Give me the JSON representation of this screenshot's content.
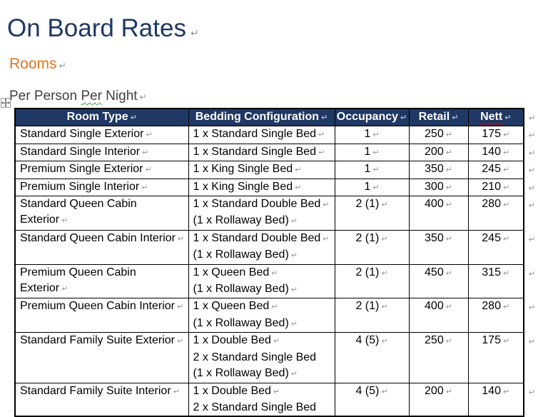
{
  "document": {
    "title": {
      "text": "On Board Rates"
    },
    "heading": {
      "text": "Rooms"
    },
    "subheading": {
      "segments": [
        {
          "text": "Per Person "
        },
        {
          "text": "Per",
          "squiggle": "green"
        },
        {
          "text": " Night"
        }
      ]
    },
    "paragraph_mark": "↵",
    "cell_mark": "↵"
  },
  "icons": {
    "table_move_handle": "move-cross"
  },
  "colors": {
    "title_navy": "#1F3864",
    "heading_orange": "#E8731C",
    "subheading_gray": "#3F3F3F",
    "table_header_bg": "#1F3864",
    "table_header_text": "#FFFFFF",
    "spell_check_red": "#E00000",
    "grammar_check_green": "#3FA33F",
    "formatting_mark_gray": "#8F959E"
  },
  "table": {
    "headers": [
      {
        "text": "Room Type"
      },
      {
        "text": "Bedding Configuration"
      },
      {
        "text": "Occupancy"
      },
      {
        "text": "Retail"
      },
      {
        "text": "Nett",
        "squiggle": "red"
      }
    ],
    "rows": [
      {
        "room_type": "Standard Single Exterior",
        "bedding": [
          {
            "text": "1 x Standard Single Bed",
            "mark": true
          }
        ],
        "occupancy": "1",
        "retail": "250",
        "nett": "175"
      },
      {
        "room_type": "Standard Single Interior",
        "bedding": [
          {
            "text": "1 x Standard Single Bed",
            "mark": true
          }
        ],
        "occupancy": "1",
        "retail": "200",
        "nett": "140"
      },
      {
        "room_type": "Premium Single Exterior",
        "bedding": [
          {
            "text": "1 x King Single Bed",
            "mark": true
          }
        ],
        "occupancy": "1",
        "retail": "350",
        "nett": "245"
      },
      {
        "room_type": "Premium Single Interior",
        "bedding": [
          {
            "text": "1 x King Single Bed",
            "mark": true
          }
        ],
        "occupancy": "1",
        "retail": "300",
        "nett": "210"
      },
      {
        "room_type": "Standard Queen Cabin Exterior",
        "bedding": [
          {
            "text": "1 x Standard Double Bed",
            "mark": true
          },
          {
            "text": "(1 x Rollaway Bed)",
            "mark": true
          }
        ],
        "occupancy": "2 (1)",
        "retail": "400",
        "nett": "280"
      },
      {
        "room_type": "Standard Queen Cabin Interior",
        "bedding": [
          {
            "text": "1 x Standard Double Bed",
            "mark": true
          },
          {
            "text": "(1 x Rollaway Bed)",
            "mark": true
          }
        ],
        "occupancy": "2 (1)",
        "retail": "350",
        "nett": "245"
      },
      {
        "room_type": "Premium Queen Cabin Exterior",
        "bedding": [
          {
            "text": "1 x Queen Bed",
            "mark": true
          },
          {
            "text": "(1 x Rollaway Bed)",
            "mark": true
          }
        ],
        "occupancy": "2 (1)",
        "retail": "450",
        "nett": "315"
      },
      {
        "room_type": "Premium Queen Cabin Interior",
        "bedding": [
          {
            "text": "1 x Queen Bed",
            "mark": true
          },
          {
            "text": "(1 x Rollaway Bed)",
            "mark": true
          }
        ],
        "occupancy": "2 (1)",
        "retail": "400",
        "nett": "280"
      },
      {
        "room_type": "Standard Family Suite Exterior",
        "bedding": [
          {
            "text": "1 x Double Bed",
            "mark": true
          },
          {
            "text": "2 x Standard Single Bed",
            "mark": false
          },
          {
            "text": "(1 x Rollaway Bed)",
            "mark": true
          }
        ],
        "occupancy": "4 (5)",
        "retail": "250",
        "nett": "175"
      },
      {
        "room_type": "Standard Family Suite Interior",
        "bedding": [
          {
            "text": "1 x Double Bed",
            "mark": true
          },
          {
            "text": "2 x Standard Single Bed",
            "mark": false
          }
        ],
        "occupancy": "4 (5)",
        "retail": "200",
        "nett": "140"
      }
    ]
  }
}
